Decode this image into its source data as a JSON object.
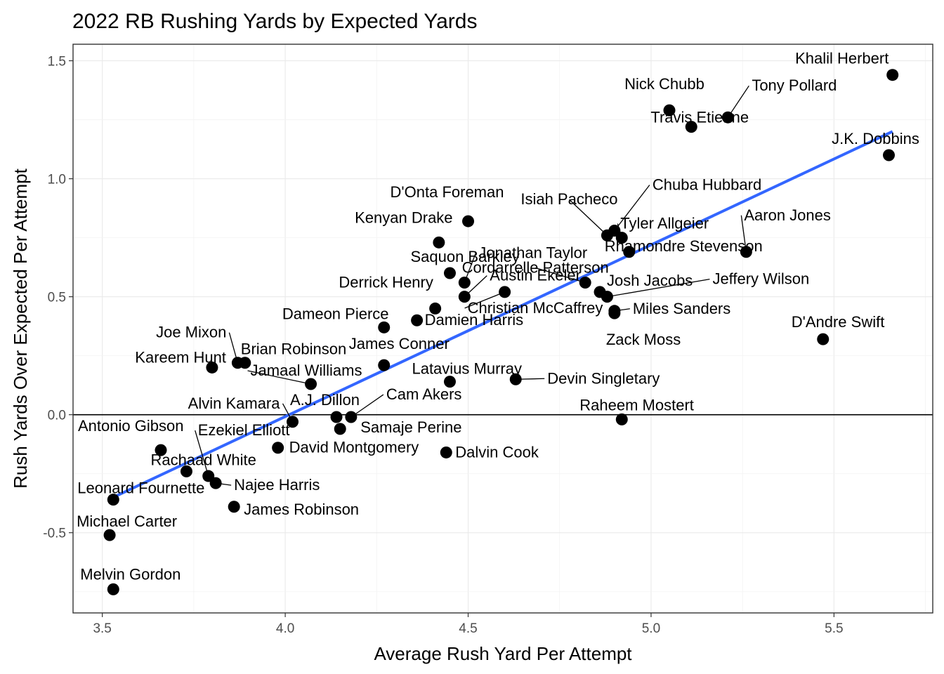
{
  "chart_data": {
    "type": "scatter",
    "title": "2022 RB Rushing Yards by Expected Yards",
    "xlabel": "Average Rush Yard Per Attempt",
    "ylabel": "Rush Yards Over Expected Per Attempt",
    "xlim": [
      3.42,
      5.77
    ],
    "ylim": [
      -0.84,
      1.57
    ],
    "xticks": [
      3.5,
      4.0,
      4.5,
      5.0,
      5.5
    ],
    "yticks": [
      -0.5,
      0.0,
      0.5,
      1.0,
      1.5
    ],
    "xtick_labels": [
      "3.5",
      "4.0",
      "4.5",
      "5.0",
      "5.5"
    ],
    "ytick_labels": [
      "-0.5",
      "0.0",
      "0.5",
      "1.0",
      "1.5"
    ],
    "grid": true,
    "reference_line_y": 0,
    "trend_line": {
      "x": [
        3.53,
        5.66
      ],
      "y": [
        -0.35,
        1.2
      ],
      "color": "#3366ff"
    },
    "point_color": "#000000",
    "points": [
      {
        "name": "Khalil Herbert",
        "x": 5.66,
        "y": 1.44
      },
      {
        "name": "Nick Chubb",
        "x": 5.05,
        "y": 1.29
      },
      {
        "name": "Tony Pollard",
        "x": 5.21,
        "y": 1.26
      },
      {
        "name": "Travis Etienne",
        "x": 5.11,
        "y": 1.22
      },
      {
        "name": "J.K. Dobbins",
        "x": 5.65,
        "y": 1.1
      },
      {
        "name": "D'Onta Foreman",
        "x": 4.5,
        "y": 0.82
      },
      {
        "name": "Isiah Pacheco",
        "x": 4.88,
        "y": 0.76
      },
      {
        "name": "Chuba Hubbard",
        "x": 4.9,
        "y": 0.78
      },
      {
        "name": "Tyler Allgeier",
        "x": 4.92,
        "y": 0.75
      },
      {
        "name": "Kenyan Drake",
        "x": 4.42,
        "y": 0.73
      },
      {
        "name": "Jonathan Taylor",
        "x": 4.49,
        "y": 0.56
      },
      {
        "name": "Cordarrelle Patterson",
        "x": 4.82,
        "y": 0.56
      },
      {
        "name": "Rhamondre Stevenson",
        "x": 4.94,
        "y": 0.69
      },
      {
        "name": "Aaron Jones",
        "x": 5.26,
        "y": 0.69
      },
      {
        "name": "Saquon Barkley",
        "x": 4.45,
        "y": 0.6
      },
      {
        "name": "Austin Ekeler",
        "x": 4.49,
        "y": 0.5
      },
      {
        "name": "Derrick Henry",
        "x": 4.41,
        "y": 0.45
      },
      {
        "name": "Josh Jacobs",
        "x": 4.86,
        "y": 0.52
      },
      {
        "name": "Jeffery Wilson",
        "x": 4.88,
        "y": 0.5
      },
      {
        "name": "Christian McCaffrey",
        "x": 4.6,
        "y": 0.52
      },
      {
        "name": "Miles Sanders",
        "x": 4.9,
        "y": 0.44
      },
      {
        "name": "Dameon Pierce",
        "x": 4.27,
        "y": 0.37
      },
      {
        "name": "Damien Harris",
        "x": 4.36,
        "y": 0.4
      },
      {
        "name": "Zack Moss",
        "x": 4.9,
        "y": 0.43
      },
      {
        "name": "D'Andre Swift",
        "x": 5.47,
        "y": 0.32
      },
      {
        "name": "Joe Mixon",
        "x": 3.87,
        "y": 0.22
      },
      {
        "name": "Brian Robinson",
        "x": 3.89,
        "y": 0.22
      },
      {
        "name": "James Conner",
        "x": 4.27,
        "y": 0.21
      },
      {
        "name": "Kareem Hunt",
        "x": 3.8,
        "y": 0.2
      },
      {
        "name": "Jamaal Williams",
        "x": 4.07,
        "y": 0.13
      },
      {
        "name": "Latavius Murray",
        "x": 4.45,
        "y": 0.14
      },
      {
        "name": "Devin Singletary",
        "x": 4.63,
        "y": 0.15
      },
      {
        "name": "Alvin Kamara",
        "x": 4.02,
        "y": -0.03
      },
      {
        "name": "A.J. Dillon",
        "x": 4.14,
        "y": -0.01
      },
      {
        "name": "Cam Akers",
        "x": 4.18,
        "y": -0.01
      },
      {
        "name": "Raheem Mostert",
        "x": 4.92,
        "y": -0.02
      },
      {
        "name": "Samaje Perine",
        "x": 4.15,
        "y": -0.06
      },
      {
        "name": "Antonio Gibson",
        "x": 3.66,
        "y": -0.15
      },
      {
        "name": "Ezekiel Elliott",
        "x": 3.79,
        "y": -0.26
      },
      {
        "name": "Rachaad White",
        "x": 3.73,
        "y": -0.24
      },
      {
        "name": "David Montgomery",
        "x": 3.98,
        "y": -0.14
      },
      {
        "name": "Dalvin Cook",
        "x": 4.44,
        "y": -0.16
      },
      {
        "name": "Najee Harris",
        "x": 3.81,
        "y": -0.29
      },
      {
        "name": "Leonard Fournette",
        "x": 3.53,
        "y": -0.36
      },
      {
        "name": "James Robinson",
        "x": 3.86,
        "y": -0.39
      },
      {
        "name": "Michael Carter",
        "x": 3.52,
        "y": -0.51
      },
      {
        "name": "Melvin Gordon",
        "x": 3.53,
        "y": -0.74
      }
    ]
  }
}
